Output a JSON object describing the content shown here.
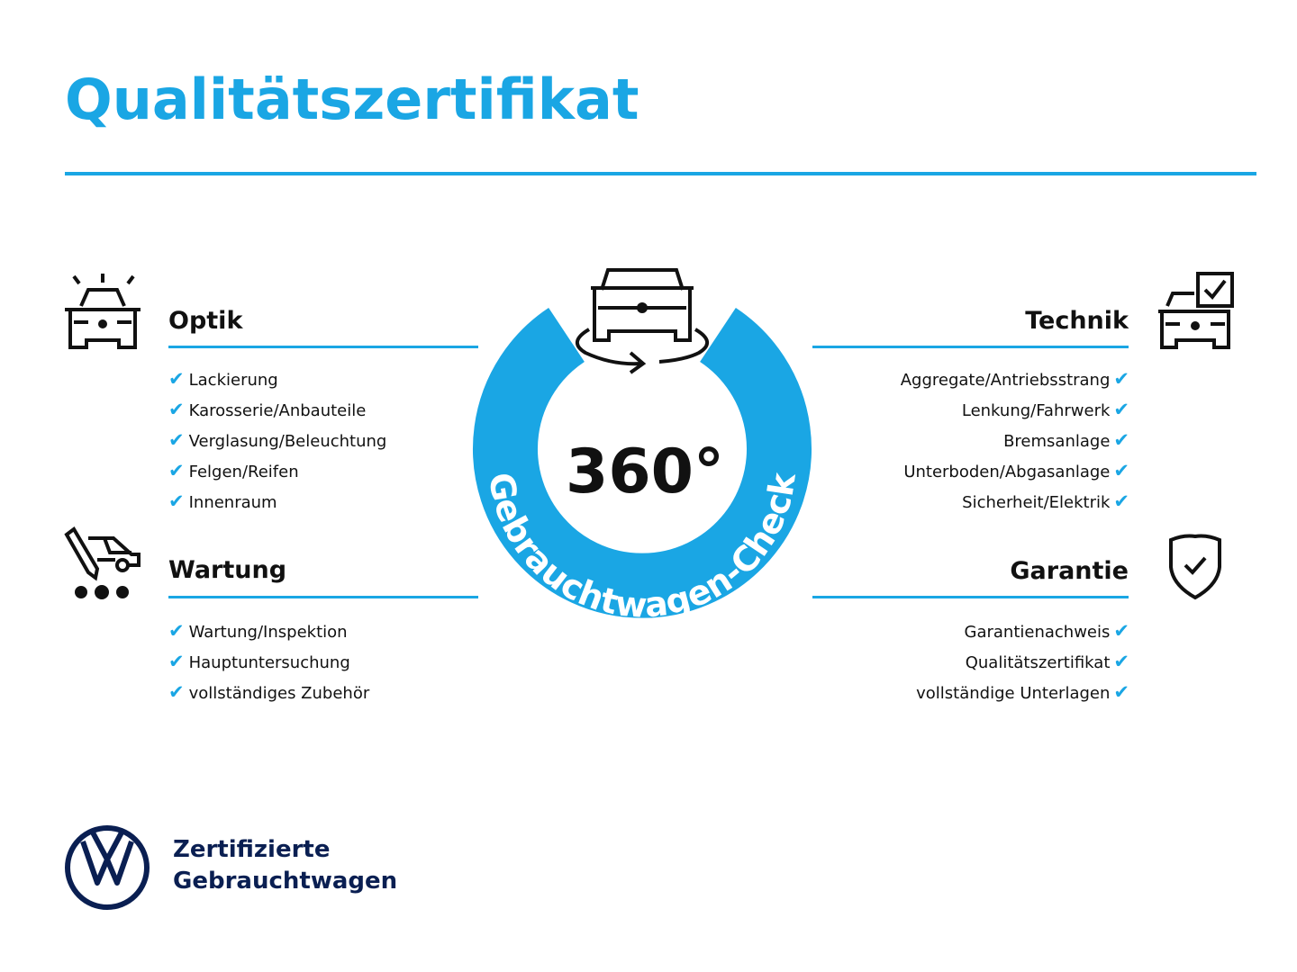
{
  "title": "Qualitätszertifikat",
  "colors": {
    "accent": "#1aa6e4",
    "brand_navy": "#0a1f52",
    "text": "#111111"
  },
  "center_badge": {
    "degrees": "360°",
    "ring_text": "Gebrauchtwagen-Check",
    "icon": "car-rotate-icon"
  },
  "sections": {
    "optik": {
      "heading": "Optik",
      "icon": "car-lights-icon",
      "items": [
        "Lackierung",
        "Karosserie/Anbauteile",
        "Verglasung/Beleuchtung",
        "Felgen/Reifen",
        "Innenraum"
      ]
    },
    "wartung": {
      "heading": "Wartung",
      "icon": "service-van-pencil-icon",
      "items": [
        "Wartung/Inspektion",
        "Hauptuntersuchung",
        "vollständiges Zubehör"
      ]
    },
    "technik": {
      "heading": "Technik",
      "icon": "car-checkbox-icon",
      "items": [
        "Aggregate/Antriebsstrang",
        "Lenkung/Fahrwerk",
        "Bremsanlage",
        "Unterboden/Abgasanlage",
        "Sicherheit/Elektrik"
      ]
    },
    "garantie": {
      "heading": "Garantie",
      "icon": "shield-check-icon",
      "items": [
        "Garantienachweis",
        "Qualitätszertifikat",
        "vollständige Unterlagen"
      ]
    }
  },
  "check_glyph": "✔",
  "brand": {
    "line1": "Zertifizierte",
    "line2": "Gebrauchtwagen",
    "logo": "VW"
  }
}
